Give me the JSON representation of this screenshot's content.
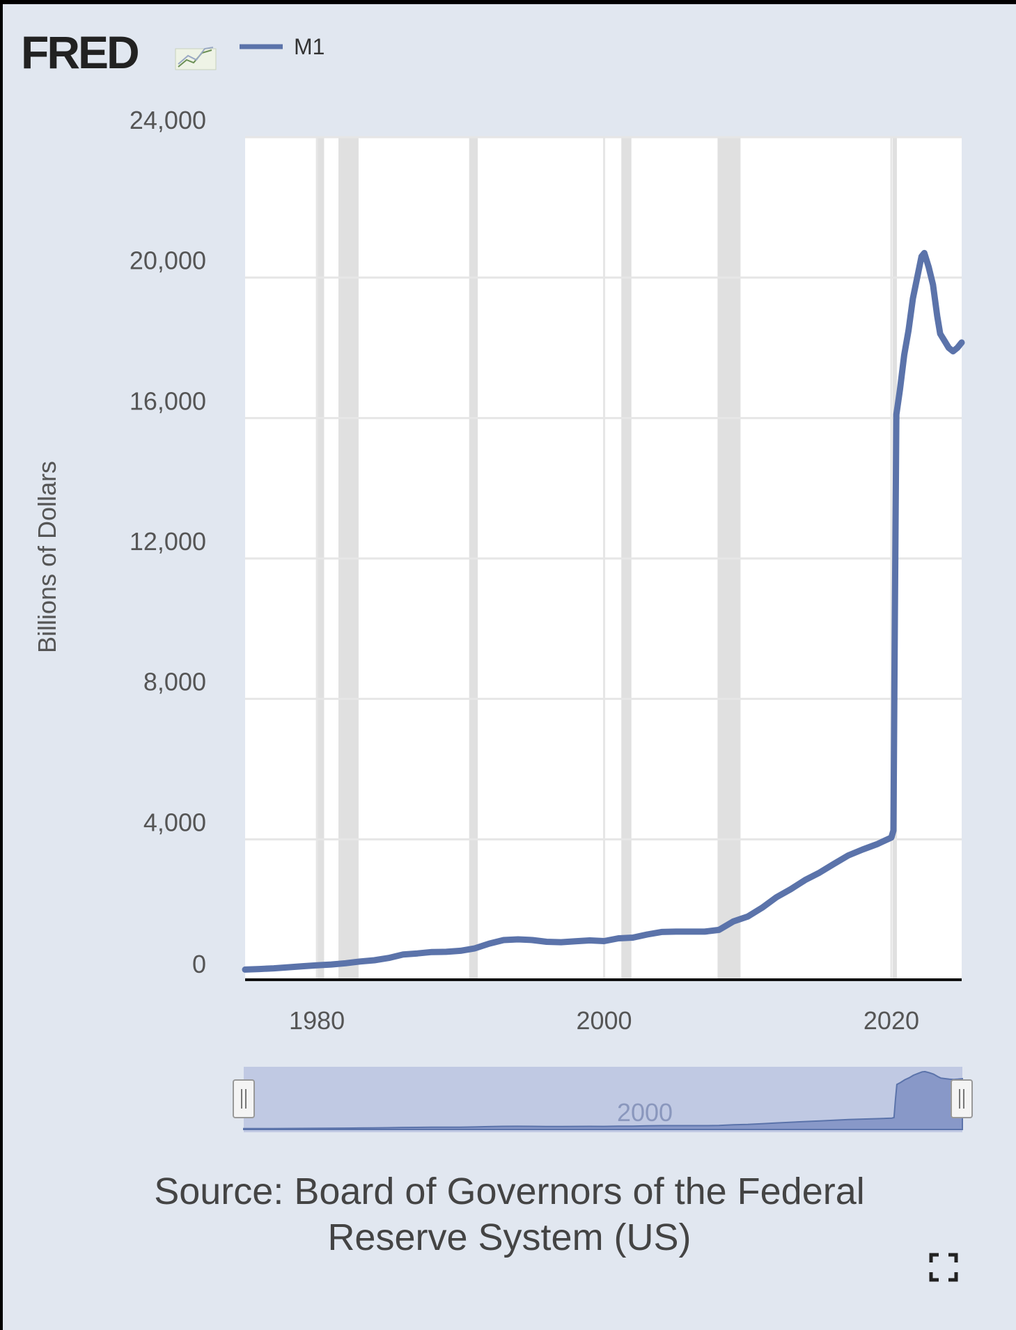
{
  "brand": {
    "logo_text": "FRED",
    "logo_icon": "line-chart-icon"
  },
  "colors": {
    "series": "#5b73aa",
    "recession": "#e0e0e0",
    "plot_bg": "#ffffff",
    "panel_bg": "#e1e7f0",
    "navigator_fill": "#b8c3e2"
  },
  "chart_data": {
    "type": "line",
    "series": [
      {
        "name": "M1",
        "points": [
          [
            1975.0,
            290
          ],
          [
            1976.0,
            305
          ],
          [
            1977.0,
            325
          ],
          [
            1978.0,
            355
          ],
          [
            1979.0,
            385
          ],
          [
            1980.0,
            410
          ],
          [
            1981.0,
            435
          ],
          [
            1982.0,
            470
          ],
          [
            1983.0,
            520
          ],
          [
            1984.0,
            555
          ],
          [
            1985.0,
            620
          ],
          [
            1986.0,
            720
          ],
          [
            1987.0,
            750
          ],
          [
            1988.0,
            790
          ],
          [
            1989.0,
            795
          ],
          [
            1990.0,
            825
          ],
          [
            1991.0,
            895
          ],
          [
            1992.0,
            1030
          ],
          [
            1993.0,
            1130
          ],
          [
            1994.0,
            1150
          ],
          [
            1995.0,
            1130
          ],
          [
            1996.0,
            1080
          ],
          [
            1997.0,
            1070
          ],
          [
            1998.0,
            1095
          ],
          [
            1999.0,
            1120
          ],
          [
            2000.0,
            1100
          ],
          [
            2001.0,
            1180
          ],
          [
            2002.0,
            1200
          ],
          [
            2003.0,
            1290
          ],
          [
            2004.0,
            1360
          ],
          [
            2005.0,
            1370
          ],
          [
            2006.0,
            1370
          ],
          [
            2007.0,
            1370
          ],
          [
            2008.0,
            1420
          ],
          [
            2009.0,
            1660
          ],
          [
            2010.0,
            1800
          ],
          [
            2011.0,
            2050
          ],
          [
            2012.0,
            2350
          ],
          [
            2013.0,
            2580
          ],
          [
            2014.0,
            2840
          ],
          [
            2015.0,
            3050
          ],
          [
            2016.0,
            3300
          ],
          [
            2017.0,
            3540
          ],
          [
            2018.0,
            3710
          ],
          [
            2019.0,
            3860
          ],
          [
            2020.0,
            4050
          ],
          [
            2020.15,
            4250
          ],
          [
            2020.25,
            10500
          ],
          [
            2020.35,
            16100
          ],
          [
            2020.6,
            16800
          ],
          [
            2020.9,
            17800
          ],
          [
            2021.2,
            18500
          ],
          [
            2021.5,
            19400
          ],
          [
            2021.8,
            20000
          ],
          [
            2022.1,
            20600
          ],
          [
            2022.3,
            20700
          ],
          [
            2022.6,
            20300
          ],
          [
            2022.9,
            19800
          ],
          [
            2023.2,
            18900
          ],
          [
            2023.4,
            18400
          ],
          [
            2023.7,
            18200
          ],
          [
            2024.0,
            18000
          ],
          [
            2024.3,
            17900
          ],
          [
            2024.6,
            18000
          ],
          [
            2024.9,
            18150
          ]
        ]
      }
    ],
    "recessions": [
      [
        1980.0,
        1980.5
      ],
      [
        1981.5,
        1982.9
      ],
      [
        1990.6,
        1991.2
      ],
      [
        2001.2,
        2001.9
      ],
      [
        2007.9,
        2009.5
      ],
      [
        2020.1,
        2020.3
      ]
    ],
    "xlabel": "",
    "ylabel": "Billions of Dollars",
    "xlim": [
      1975.0,
      2024.9
    ],
    "ylim": [
      0,
      24000
    ],
    "x_ticks": [
      1980,
      2000,
      2020
    ],
    "y_ticks": [
      0,
      4000,
      8000,
      12000,
      16000,
      20000,
      24000
    ],
    "x_tick_labels": [
      "1980",
      "2000",
      "2020"
    ],
    "y_tick_labels": [
      "0",
      "4,000",
      "8,000",
      "12,000",
      "16,000",
      "20,000",
      "24,000"
    ],
    "grid": true,
    "legend": "top-left",
    "navigator": {
      "label": "2000",
      "x_range": [
        1975.0,
        2024.9
      ]
    }
  },
  "source": {
    "line1": "Source: Board of Governors of the Federal",
    "line2": "Reserve System (US)"
  },
  "icons": {
    "expand": "fullscreen-expand-icon"
  }
}
